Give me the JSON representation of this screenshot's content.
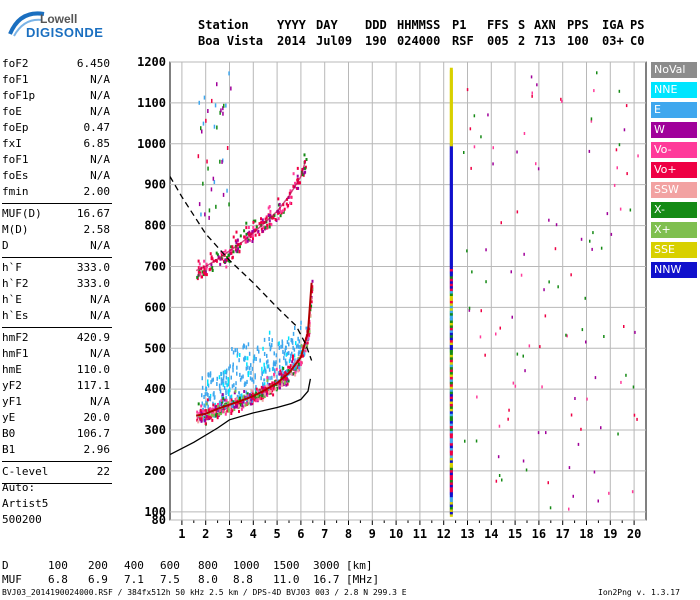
{
  "logo": {
    "line1": "Lowell",
    "line2": "DIGISONDE"
  },
  "header": {
    "row1": [
      "Station",
      "YYYY",
      "DAY",
      "DDD",
      "HHMMSS",
      "P1",
      "FFS",
      "S",
      "AXN",
      "PPS",
      "IGA",
      "PS"
    ],
    "row2": [
      "Boa Vista",
      "2014",
      "Jul09",
      "190",
      "024000",
      "RSF",
      "005",
      "2",
      "713",
      "100",
      "03+",
      "C0"
    ]
  },
  "params": [
    {
      "k": "foF2",
      "v": "6.450"
    },
    {
      "k": "foF1",
      "v": "N/A"
    },
    {
      "k": "foF1p",
      "v": "N/A"
    },
    {
      "k": "foE",
      "v": "N/A"
    },
    {
      "k": "foEp",
      "v": "0.47"
    },
    {
      "k": "fxI",
      "v": "6.85"
    },
    {
      "k": "foF1",
      "v": "N/A"
    },
    {
      "k": "foEs",
      "v": "N/A"
    },
    {
      "k": "fmin",
      "v": "2.00"
    },
    {
      "k": "MUF(D)",
      "v": "16.67"
    },
    {
      "k": "M(D)",
      "v": "2.58"
    },
    {
      "k": "D",
      "v": "N/A"
    },
    {
      "k": "h`F",
      "v": "333.0"
    },
    {
      "k": "h`F2",
      "v": "333.0"
    },
    {
      "k": "h`E",
      "v": "N/A"
    },
    {
      "k": "h`Es",
      "v": "N/A"
    },
    {
      "k": "hmF2",
      "v": "420.9"
    },
    {
      "k": "hmF1",
      "v": "N/A"
    },
    {
      "k": "hmE",
      "v": "110.0"
    },
    {
      "k": "yF2",
      "v": "117.1"
    },
    {
      "k": "yF1",
      "v": "N/A"
    },
    {
      "k": "yE",
      "v": "20.0"
    },
    {
      "k": "B0",
      "v": "106.7"
    },
    {
      "k": "B1",
      "v": "2.96"
    },
    {
      "k": "C-level",
      "v": "22"
    }
  ],
  "auto": [
    "Auto:",
    "Artist5",
    "500200"
  ],
  "legend": [
    {
      "label": "NoVal",
      "color": "#8c8c8c"
    },
    {
      "label": "NNE",
      "color": "#00e5ff"
    },
    {
      "label": "E",
      "color": "#3fa7ee"
    },
    {
      "label": "W",
      "color": "#a0009a"
    },
    {
      "label": "Vo-",
      "color": "#ff3b9a"
    },
    {
      "label": "Vo+",
      "color": "#ee0044"
    },
    {
      "label": "SSW",
      "color": "#f2a2a2"
    },
    {
      "label": "X-",
      "color": "#158a15"
    },
    {
      "label": "X+",
      "color": "#7fbf4f"
    },
    {
      "label": "SSE",
      "color": "#d8d000"
    },
    {
      "label": "NNW",
      "color": "#1010cc"
    }
  ],
  "footer": {
    "d_label": "D",
    "d_values": [
      "100",
      "200",
      "400",
      "600",
      "800",
      "1000",
      "1500",
      "3000"
    ],
    "d_unit": "[km]",
    "muf_label": "MUF",
    "muf_values": [
      "6.8",
      "6.9",
      "7.1",
      "7.5",
      "8.0",
      "8.8",
      "11.0",
      "16.7"
    ],
    "muf_unit": "[MHz]",
    "filename": "BVJ03_2014190024000.RSF / 384fx512h 50 kHz 2.5 km / DPS-4D BVJ03 003 / 2.8 N 299.3 E",
    "version": "Ion2Png v. 1.3.17"
  },
  "chart_data": {
    "type": "scatter",
    "xlim": [
      0.5,
      20.5
    ],
    "ylim": [
      80,
      1200
    ],
    "x_ticks": [
      1,
      2,
      3,
      4,
      5,
      6,
      7,
      8,
      9,
      10,
      11,
      12,
      13,
      14,
      15,
      16,
      17,
      18,
      19,
      20
    ],
    "y_ticks": [
      80,
      100,
      200,
      300,
      400,
      500,
      600,
      700,
      800,
      900,
      1000,
      1100,
      1200
    ],
    "grid": true,
    "trace_o": {
      "x": [
        1.6,
        2.0,
        2.5,
        3.0,
        3.5,
        4.0,
        4.5,
        5.0,
        5.5,
        6.0,
        6.3,
        6.45
      ],
      "y": [
        335,
        340,
        352,
        362,
        372,
        383,
        398,
        415,
        440,
        478,
        540,
        660
      ]
    },
    "trace_o_2hop": {
      "x": [
        1.6,
        2.0,
        2.5,
        3.0,
        3.5,
        4.0,
        4.5,
        5.0,
        5.5,
        6.0,
        6.2
      ],
      "y": [
        690,
        700,
        718,
        738,
        758,
        782,
        808,
        835,
        872,
        920,
        960
      ]
    },
    "profile_solid": {
      "x": [
        0.5,
        1.5,
        2.5,
        3.0,
        4.0,
        5.0,
        5.6,
        6.0,
        6.3,
        6.4
      ],
      "y": [
        240,
        270,
        305,
        325,
        342,
        355,
        365,
        375,
        395,
        425
      ]
    },
    "profile_dashed": {
      "x": [
        0.5,
        1.0,
        2.0,
        3.0,
        4.0,
        5.0,
        5.8,
        6.2,
        6.45
      ],
      "y": [
        920,
        870,
        780,
        715,
        660,
        600,
        555,
        510,
        470
      ]
    },
    "interference_x": 12.3
  }
}
